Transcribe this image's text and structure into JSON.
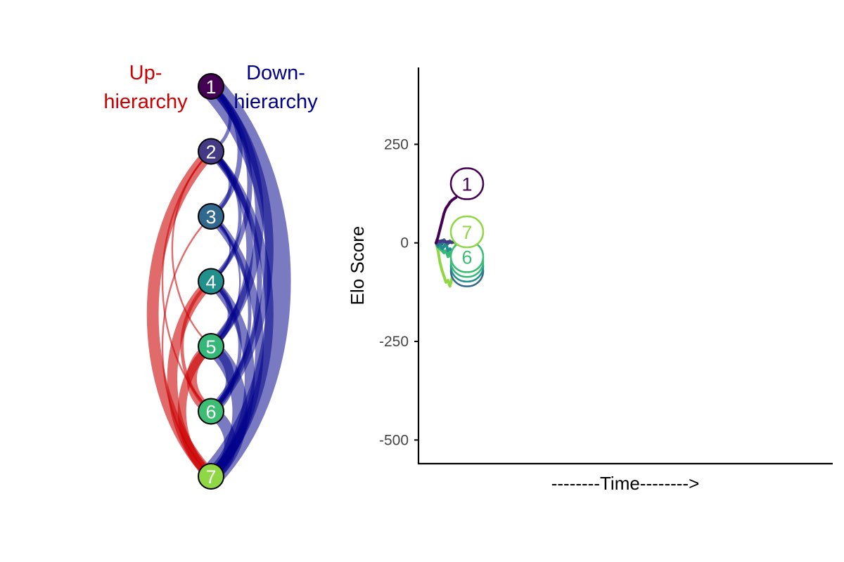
{
  "network_panel": {
    "up_label": [
      "Up-",
      "hierarchy"
    ],
    "down_label": [
      "Down-",
      "hierarchy"
    ],
    "up_color": "#cc0000",
    "down_color": "#00008b",
    "nodes": [
      {
        "rank": "1",
        "color": "#440154",
        "text_color": "#ffffff"
      },
      {
        "rank": "2",
        "color": "#443a83",
        "text_color": "#ffffff"
      },
      {
        "rank": "3",
        "color": "#31688e",
        "text_color": "#ffffff"
      },
      {
        "rank": "4",
        "color": "#21908d",
        "text_color": "#ffffff"
      },
      {
        "rank": "5",
        "color": "#35b779",
        "text_color": "#ffffff"
      },
      {
        "rank": "6",
        "color": "#3dbc74",
        "text_color": "#ffffff"
      },
      {
        "rank": "7",
        "color": "#8fd744",
        "text_color": "#ffffff"
      }
    ],
    "edges": [
      {
        "from": 1,
        "to": 7,
        "dir": "down",
        "weight": 14
      },
      {
        "from": 1,
        "to": 6,
        "dir": "down",
        "weight": 5
      },
      {
        "from": 1,
        "to": 5,
        "dir": "down",
        "weight": 5
      },
      {
        "from": 1,
        "to": 4,
        "dir": "down",
        "weight": 3
      },
      {
        "from": 1,
        "to": 3,
        "dir": "down",
        "weight": 3
      },
      {
        "from": 1,
        "to": 2,
        "dir": "down",
        "weight": 2
      },
      {
        "from": 2,
        "to": 7,
        "dir": "down",
        "weight": 5
      },
      {
        "from": 2,
        "to": 6,
        "dir": "down",
        "weight": 3
      },
      {
        "from": 2,
        "to": 5,
        "dir": "down",
        "weight": 4
      },
      {
        "from": 2,
        "to": 4,
        "dir": "down",
        "weight": 2
      },
      {
        "from": 2,
        "to": 3,
        "dir": "down",
        "weight": 2
      },
      {
        "from": 3,
        "to": 7,
        "dir": "down",
        "weight": 5
      },
      {
        "from": 3,
        "to": 6,
        "dir": "down",
        "weight": 2
      },
      {
        "from": 3,
        "to": 5,
        "dir": "down",
        "weight": 1
      },
      {
        "from": 3,
        "to": 4,
        "dir": "down",
        "weight": 1
      },
      {
        "from": 4,
        "to": 7,
        "dir": "down",
        "weight": 6
      },
      {
        "from": 4,
        "to": 6,
        "dir": "down",
        "weight": 2
      },
      {
        "from": 4,
        "to": 5,
        "dir": "down",
        "weight": 3
      },
      {
        "from": 5,
        "to": 7,
        "dir": "down",
        "weight": 9
      },
      {
        "from": 5,
        "to": 6,
        "dir": "down",
        "weight": 5
      },
      {
        "from": 6,
        "to": 7,
        "dir": "down",
        "weight": 7
      },
      {
        "from": 7,
        "to": 2,
        "dir": "up",
        "weight": 7
      },
      {
        "from": 7,
        "to": 3,
        "dir": "up",
        "weight": 1
      },
      {
        "from": 7,
        "to": 4,
        "dir": "up",
        "weight": 6
      },
      {
        "from": 7,
        "to": 5,
        "dir": "up",
        "weight": 5
      },
      {
        "from": 6,
        "to": 2,
        "dir": "up",
        "weight": 1
      },
      {
        "from": 6,
        "to": 4,
        "dir": "up",
        "weight": 2
      },
      {
        "from": 6,
        "to": 5,
        "dir": "up",
        "weight": 6
      },
      {
        "from": 5,
        "to": 2,
        "dir": "up",
        "weight": 1
      }
    ]
  },
  "chart_data": {
    "type": "line",
    "xlabel": "--------Time-------->",
    "ylabel": "Elo Score",
    "ylim": [
      -560,
      445
    ],
    "yticks": [
      250,
      0,
      -250,
      -500
    ],
    "ytick_labels": [
      "250",
      "0",
      "-250",
      "-500"
    ],
    "x_range": [
      0,
      100
    ],
    "series": [
      {
        "name": "1",
        "color": "#440154",
        "x": [
          0,
          0.5,
          1,
          1.5,
          2,
          2.5,
          3,
          3.5,
          4,
          4.5,
          5
        ],
        "y": [
          0,
          15,
          35,
          55,
          75,
          88,
          95,
          103,
          108,
          112,
          115
        ]
      },
      {
        "name": "2",
        "color": "#443a83",
        "x": [
          0,
          0.5,
          1,
          1.5,
          2,
          2.5,
          3,
          3.5,
          4,
          4.5,
          5
        ],
        "y": [
          0,
          5,
          3,
          6,
          4,
          2,
          3,
          1,
          2,
          2,
          3
        ]
      },
      {
        "name": "3",
        "color": "#31688e",
        "x": [
          0,
          0.5,
          1,
          1.5,
          2,
          2.5,
          3,
          3.5,
          4,
          4.5,
          5
        ],
        "y": [
          0,
          -5,
          5,
          -3,
          8,
          2,
          -2,
          5,
          0,
          3,
          1
        ]
      },
      {
        "name": "4",
        "color": "#21908d",
        "x": [
          0,
          0.5,
          1,
          1.5,
          2,
          2.5,
          3,
          3.5,
          4,
          4.5,
          5
        ],
        "y": [
          0,
          -10,
          -5,
          -15,
          -10,
          0,
          -20,
          -15,
          -20,
          -25,
          -22
        ]
      },
      {
        "name": "5",
        "color": "#35b779",
        "x": [
          0,
          0.5,
          1,
          1.5,
          2,
          2.5,
          3,
          3.5,
          4,
          4.5,
          5
        ],
        "y": [
          0,
          -5,
          -15,
          -10,
          -25,
          -20,
          -30,
          -25,
          -35,
          -30,
          -32
        ]
      },
      {
        "name": "6",
        "color": "#3dbc74",
        "x": [
          0,
          0.5,
          1,
          1.5,
          2,
          2.5,
          3,
          3.5,
          4,
          4.5,
          5
        ],
        "y": [
          0,
          -10,
          -15,
          -20,
          -25,
          -20,
          -35,
          -30,
          -40,
          -45,
          -40
        ]
      },
      {
        "name": "7",
        "color": "#8fd744",
        "x": [
          0,
          0.5,
          1,
          1.5,
          2,
          2.5,
          3,
          3.5,
          4,
          4.5,
          5
        ],
        "y": [
          0,
          -20,
          -50,
          -70,
          -85,
          -100,
          -95,
          -110,
          -90,
          -60,
          5
        ]
      }
    ],
    "end_labels": [
      {
        "name": "1",
        "y": 150
      },
      {
        "name": "7",
        "y": 28
      },
      {
        "name": "6",
        "y": -35
      },
      {
        "name": "5",
        "y": -47
      },
      {
        "name": "4",
        "y": -59
      },
      {
        "name": "3",
        "y": -71
      }
    ],
    "grid": false,
    "legend": "none"
  }
}
